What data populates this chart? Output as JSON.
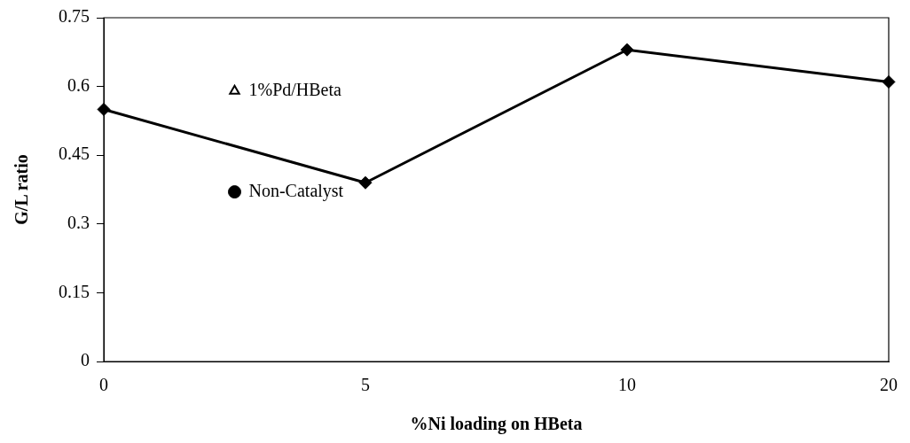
{
  "chart_data": {
    "type": "line",
    "xlabel": "%Ni loading on HBeta",
    "ylabel": "G/L ratio",
    "categories": [
      "0",
      null,
      "5",
      null,
      "10",
      null,
      "20"
    ],
    "series": [
      {
        "type": "line",
        "color": "#000000",
        "marker": "diamond",
        "values": [
          0.55,
          null,
          0.39,
          null,
          0.68,
          null,
          0.61
        ]
      },
      {
        "type": "scatter",
        "name": "1%Pd/HBeta",
        "color": "#000000",
        "marker": "triangle",
        "values": [
          null,
          0.59,
          null,
          null,
          null,
          null,
          null
        ]
      },
      {
        "type": "scatter",
        "name": "Non-Catalyst",
        "color": "#000000",
        "marker": "circle",
        "values": [
          null,
          0.37,
          null,
          null,
          null,
          null,
          null
        ]
      }
    ],
    "ylim": [
      0,
      0.75
    ],
    "yticks": [
      0,
      0.15,
      0.3,
      0.45,
      0.6,
      0.75
    ],
    "grid": false,
    "legend": false
  }
}
